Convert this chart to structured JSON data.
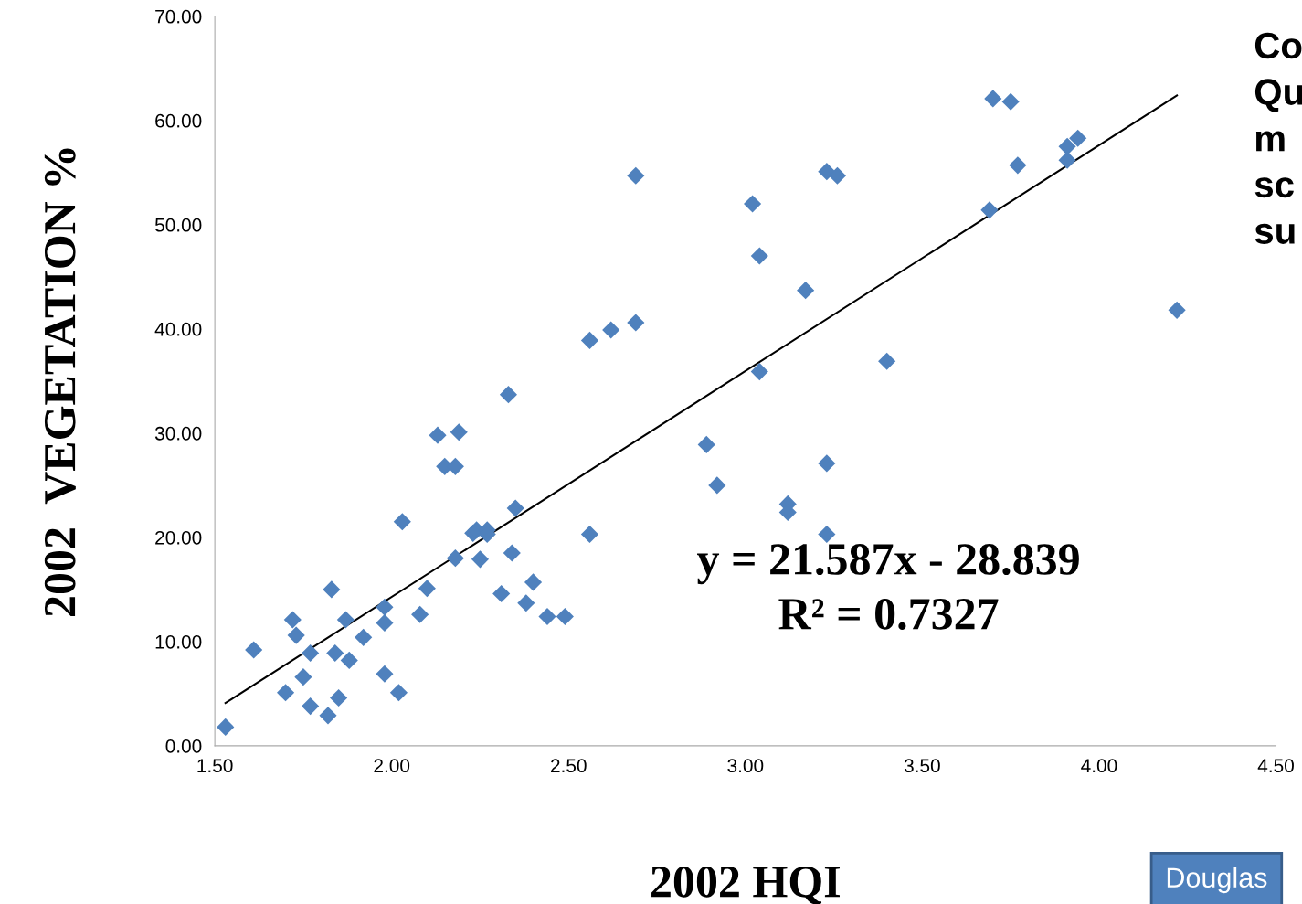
{
  "chart_data": {
    "type": "scatter",
    "xlabel": "2002 HQI",
    "ylabel": "2002  VEGETATION %",
    "legend": false,
    "grid": false,
    "xlim": [
      1.5,
      4.5
    ],
    "xticks": [
      {
        "value": 1.5,
        "label": "1.50"
      },
      {
        "value": 2.0,
        "label": "2.00"
      },
      {
        "value": 2.5,
        "label": "2.50"
      },
      {
        "value": 3.0,
        "label": "3.00"
      },
      {
        "value": 3.5,
        "label": "3.50"
      },
      {
        "value": 4.0,
        "label": "4.00"
      },
      {
        "value": 4.5,
        "label": "4.50"
      }
    ],
    "ylim": [
      0,
      70
    ],
    "yticks": [
      {
        "value": 0,
        "label": "0.00"
      },
      {
        "value": 10,
        "label": "10.00"
      },
      {
        "value": 20,
        "label": "20.00"
      },
      {
        "value": 30,
        "label": "30.00"
      },
      {
        "value": 40,
        "label": "40.00"
      },
      {
        "value": 50,
        "label": "50.00"
      },
      {
        "value": 60,
        "label": "60.00"
      },
      {
        "value": 70,
        "label": "70.00"
      }
    ],
    "series": [
      {
        "marker": "diamond",
        "color": "#4f81bd",
        "x": [
          1.53,
          1.61,
          1.7,
          1.72,
          1.73,
          1.75,
          1.77,
          1.77,
          1.82,
          1.83,
          1.84,
          1.85,
          1.87,
          1.88,
          1.92,
          1.98,
          1.98,
          1.98,
          2.02,
          2.03,
          2.08,
          2.1,
          2.13,
          2.15,
          2.18,
          2.19,
          2.18,
          2.23,
          2.24,
          2.27,
          2.27,
          2.25,
          2.31,
          2.33,
          2.34,
          2.35,
          2.38,
          2.4,
          2.44,
          2.49,
          2.56,
          2.56,
          2.62,
          2.69,
          2.69,
          2.89,
          2.92,
          3.02,
          3.04,
          3.04,
          3.12,
          3.12,
          3.17,
          3.23,
          3.26,
          3.23,
          3.23,
          3.4,
          3.69,
          3.7,
          3.75,
          3.77,
          3.91,
          3.91,
          3.94,
          4.22
        ],
        "values": [
          1.8,
          9.2,
          5.1,
          12.1,
          10.6,
          6.6,
          8.9,
          3.8,
          2.9,
          15.0,
          8.9,
          4.6,
          12.1,
          8.2,
          10.4,
          6.9,
          11.8,
          13.3,
          5.1,
          21.5,
          12.6,
          15.1,
          29.8,
          26.8,
          26.8,
          30.1,
          18.0,
          20.4,
          20.7,
          20.7,
          20.3,
          17.9,
          14.6,
          33.7,
          18.5,
          22.8,
          13.7,
          15.7,
          12.4,
          12.4,
          38.9,
          20.3,
          39.9,
          54.7,
          40.6,
          28.9,
          25.0,
          52.0,
          47.0,
          35.9,
          23.2,
          22.4,
          43.7,
          55.1,
          54.7,
          27.1,
          20.3,
          36.9,
          51.4,
          62.1,
          61.8,
          55.7,
          56.2,
          57.5,
          58.3,
          41.8
        ]
      },
      {
        "type": "line",
        "color": "#000000",
        "x": [
          1.53,
          4.22
        ],
        "values": [
          4.1,
          62.4
        ]
      }
    ],
    "annotations": [
      "y = 21.587x - 28.839",
      "R² = 0.7327",
      "Co\nQu\nm\nsc\nsu",
      "Douglas"
    ]
  }
}
